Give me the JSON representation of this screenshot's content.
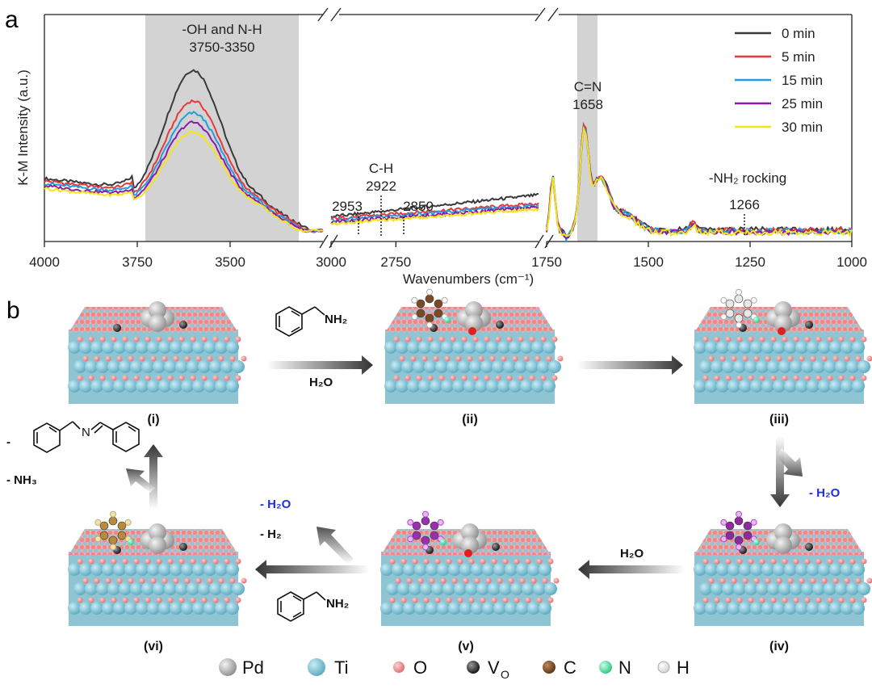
{
  "figure": {
    "panel_a_label": "a",
    "panel_b_label": "b"
  },
  "chart_data": {
    "type": "line",
    "xlabel": "Wavenumbers (cm⁻¹)",
    "ylabel": "K-M Intensity (a.u.)",
    "x_segments": [
      {
        "range": [
          4000,
          3250
        ],
        "ticks": [
          4000,
          3750,
          3500
        ]
      },
      {
        "range": [
          3000,
          2200
        ],
        "ticks": [
          3000,
          2750
        ]
      },
      {
        "range": [
          1750,
          1000
        ],
        "ticks": [
          1750,
          1500,
          1250,
          1000
        ]
      }
    ],
    "legend_position": "top-right",
    "series": [
      {
        "name": "0 min",
        "color": "#3a3a3a",
        "peak": 1.0
      },
      {
        "name": "5 min",
        "color": "#e8393a",
        "peak": 0.78
      },
      {
        "name": "15 min",
        "color": "#1f9fe0",
        "peak": 0.7
      },
      {
        "name": "25 min",
        "color": "#8e1aa8",
        "peak": 0.64
      },
      {
        "name": "30 min",
        "color": "#f2e51a",
        "peak": 0.58
      }
    ],
    "annotations": [
      {
        "text": "-OH and N-H",
        "sub": "3750-3350",
        "band": [
          3750,
          3200
        ]
      },
      {
        "text": "C-H",
        "sub": "2922",
        "lines": [
          2953,
          2922,
          2850
        ],
        "side_labels": [
          "2953",
          "2850"
        ]
      },
      {
        "text": "C=N",
        "sub": "1658",
        "band": [
          1690,
          1640
        ]
      },
      {
        "text": "-NH₂ rocking",
        "sub": "1266",
        "lines": [
          1266
        ]
      }
    ]
  },
  "scheme": {
    "stages": [
      "(i)",
      "(ii)",
      "(iii)",
      "(iv)",
      "(v)",
      "(vi)"
    ],
    "reagent_top": "NH₂",
    "water": "H₂O",
    "loss_water": "- H₂O",
    "loss_h2": "- H₂",
    "loss_nh3": "- NH₃",
    "loss_dash": "-",
    "reagent_bottom": "NH₂",
    "water_bottom": "H₂O"
  },
  "element_legend": [
    {
      "symbol": "Pd",
      "color": "#bdbdbd"
    },
    {
      "symbol": "Ti",
      "color": "#7ec3d6"
    },
    {
      "symbol": "O",
      "color": "#f08a8a"
    },
    {
      "symbol": "V",
      "sub": "O",
      "color": "#333333"
    },
    {
      "symbol": "C",
      "color": "#7a4a26"
    },
    {
      "symbol": "N",
      "color": "#4ee0a2"
    },
    {
      "symbol": "H",
      "color": "#ffffff"
    }
  ]
}
